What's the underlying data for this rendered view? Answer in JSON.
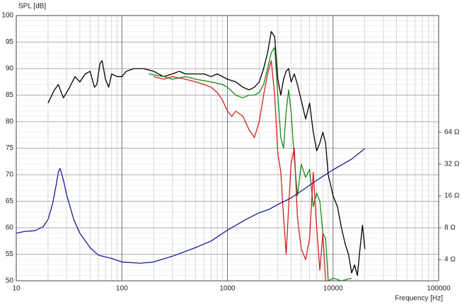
{
  "chart_data": {
    "type": "line",
    "ylabel": "SPL [dB]",
    "xlabel": "Frequency [Hz]",
    "xlim": [
      10,
      100000
    ],
    "xticks": [
      10,
      100,
      1000,
      10000,
      100000
    ],
    "xlog": true,
    "ylim": [
      50,
      100
    ],
    "yticks": [
      50,
      55,
      60,
      65,
      70,
      75,
      80,
      85,
      90,
      95,
      100
    ],
    "y2lim": [
      2.52,
      813
    ],
    "y2log": true,
    "y2ticks": [
      {
        "value": 4,
        "label": "4 Ω"
      },
      {
        "value": 8,
        "label": "8 Ω"
      },
      {
        "value": 16,
        "label": "16 Ω"
      },
      {
        "value": 32,
        "label": "32 Ω"
      },
      {
        "value": 64,
        "label": "64 Ω"
      }
    ],
    "grid": true,
    "minor_grid": true,
    "series": [
      {
        "color": "#000000",
        "x": [
          20,
          23,
          25,
          28,
          32,
          36,
          40,
          45,
          50,
          55,
          58,
          62,
          65,
          70,
          75,
          80,
          90,
          100,
          110,
          130,
          160,
          200,
          250,
          300,
          350,
          400,
          500,
          600,
          700,
          800,
          1000,
          1200,
          1400,
          1600,
          1800,
          2000,
          2200,
          2400,
          2600,
          2800,
          3000,
          3200,
          3400,
          3600,
          3800,
          4000,
          4300,
          4600,
          5000,
          5500,
          6000,
          6500,
          7000,
          7500,
          8000,
          8500,
          9000,
          9500,
          10000,
          11000,
          12000,
          13000,
          14000,
          15000,
          16000,
          17000,
          18000,
          19000,
          20000
        ],
        "values": [
          83.5,
          86,
          87,
          84.5,
          86.5,
          88.5,
          87.5,
          89,
          89.5,
          86.5,
          87,
          91,
          91.5,
          88,
          86.5,
          89,
          88.5,
          88.5,
          89.5,
          90,
          90,
          89.5,
          88.5,
          89,
          89.5,
          89,
          89,
          89,
          88.5,
          89,
          88,
          87.5,
          86.5,
          86,
          86.5,
          87.5,
          90,
          93,
          97,
          96,
          88,
          85,
          88,
          89.5,
          90,
          87.5,
          89,
          87,
          84,
          80.5,
          83.5,
          78,
          74.5,
          76,
          78,
          76,
          70,
          68,
          66,
          64,
          60,
          57,
          55,
          51.5,
          53,
          51,
          56,
          60.5,
          56
        ]
      },
      {
        "color": "#1a8a1a",
        "x": [
          180,
          250,
          300,
          400,
          500,
          700,
          900,
          1000,
          1200,
          1400,
          1600,
          1800,
          2000,
          2200,
          2400,
          2600,
          2800,
          3000,
          3200,
          3400,
          3600,
          3800,
          4000,
          4300,
          4600,
          5000,
          5500,
          6000,
          6500,
          7000,
          7500,
          8000,
          8500,
          9000,
          10000,
          12000,
          15000
        ],
        "values": [
          89,
          88.5,
          88,
          88.5,
          88,
          87.5,
          87,
          86.5,
          85,
          84.5,
          85,
          85,
          85.5,
          87,
          90,
          93,
          94,
          85,
          77,
          75,
          82,
          86,
          82,
          73,
          66,
          72,
          69.5,
          71,
          64,
          66.5,
          65,
          59,
          58,
          50,
          50.5,
          50,
          50.5
        ]
      },
      {
        "color": "#d42020",
        "x": [
          200,
          250,
          300,
          400,
          500,
          600,
          700,
          800,
          900,
          1000,
          1100,
          1200,
          1400,
          1600,
          1800,
          2000,
          2200,
          2400,
          2600,
          2800,
          3000,
          3200,
          3400,
          3600,
          3800,
          4000,
          4300,
          4600,
          5000,
          5500,
          6000,
          6500,
          7000,
          7500,
          8000,
          8500,
          9000
        ],
        "values": [
          88.5,
          88,
          88.5,
          88,
          87.5,
          87,
          86.5,
          85.5,
          84,
          82,
          81,
          82,
          81,
          78.5,
          77,
          80,
          85,
          89,
          91.5,
          85,
          74,
          70.5,
          62,
          55,
          64,
          72,
          75,
          62,
          56,
          54,
          58,
          70.5,
          60,
          52,
          59,
          50,
          50
        ]
      },
      {
        "color": "#1a1a9a",
        "axis": "y2",
        "x": [
          10,
          12,
          15,
          18,
          20,
          22,
          24,
          25,
          26,
          28,
          30,
          35,
          40,
          50,
          60,
          80,
          100,
          150,
          200,
          300,
          500,
          700,
          1000,
          1500,
          2000,
          2500,
          3000,
          4000,
          5000,
          7000,
          10000,
          15000,
          20000
        ],
        "values": [
          7.1,
          7.4,
          7.5,
          8.2,
          9.6,
          13.3,
          20.8,
          26.9,
          29.2,
          22.5,
          16.4,
          9.6,
          7.1,
          5.2,
          4.4,
          4.1,
          3.8,
          3.7,
          3.8,
          4.3,
          5.2,
          6,
          7.6,
          9.6,
          11.1,
          12,
          13.3,
          15.3,
          17.8,
          22.5,
          28.3,
          35.7,
          44.9
        ]
      }
    ]
  }
}
